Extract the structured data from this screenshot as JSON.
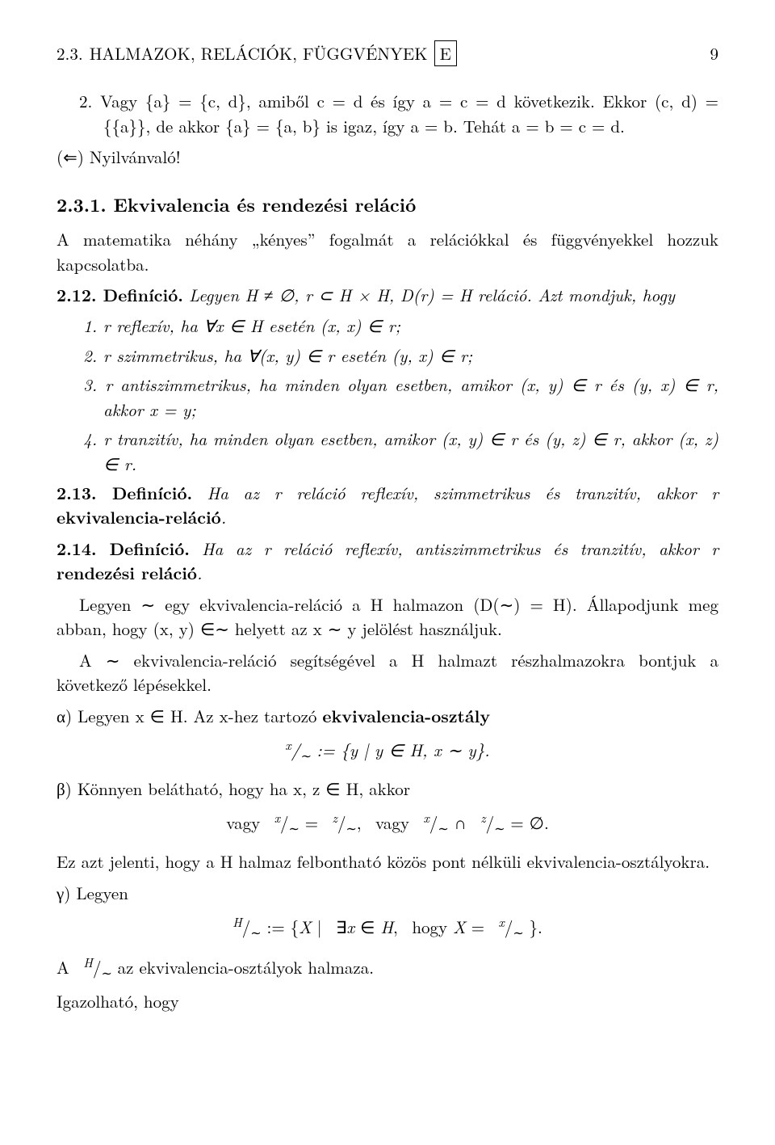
{
  "header": {
    "section_num": "2.3.",
    "section_title": "HALMAZOK, RELÁCIÓK, FÜGGVÉNYEK",
    "boxed_letter": "E",
    "page_number": "9"
  },
  "case2": {
    "num": "2.",
    "text": "Vagy {a} = {c, d}, amiből c = d és így a = c = d következik. Ekkor (c, d) = {{a}}, de akkor {a} = {a, b} is igaz, így a = b. Tehát a = b = c = d."
  },
  "nyilv": "(⇐) Nyilvánvaló!",
  "subsection": {
    "num": "2.3.1.",
    "title": "Ekvivalencia és rendezési reláció"
  },
  "intro": "A matematika néhány „kényes” fogalmát a relációkkal és függvényekkel hozzuk kapcsolatba.",
  "def212": {
    "label": "2.12. Definíció.",
    "body": "Legyen H ≠ ∅, r ⊂ H × H, D(r) = H reláció. Azt mondjuk, hogy"
  },
  "items": [
    {
      "num": "1.",
      "text": "r reflexív, ha ∀x ∈ H esetén (x, x) ∈ r;"
    },
    {
      "num": "2.",
      "text": "r szimmetrikus, ha ∀(x, y) ∈ r esetén (y, x) ∈ r;"
    },
    {
      "num": "3.",
      "text": "r antiszimmetrikus, ha minden olyan esetben, amikor (x, y) ∈ r és (y, x) ∈ r, akkor x = y;"
    },
    {
      "num": "4.",
      "text": "r tranzitív, ha minden olyan esetben, amikor (x, y) ∈ r és (y, z) ∈ r, akkor (x, z) ∈ r."
    }
  ],
  "def213": {
    "label": "2.13. Definíció.",
    "body_pre": "Ha az r reláció reflexív, szimmetrikus és tranzitív, akkor r ",
    "bold": "ekvivalencia-reláció",
    "body_post": "."
  },
  "def214": {
    "label": "2.14. Definíció.",
    "body_pre": "Ha az r reláció reflexív, antiszimmetrikus és tranzitív, akkor r ",
    "bold": "rendezési reláció",
    "body_post": "."
  },
  "p_legyen": "Legyen ∼ egy ekvivalencia-reláció a H halmazon (D(∼) = H). Állapodjunk meg abban, hogy (x, y) ∈∼ helyett az x ∼ y jelölést használjuk.",
  "p_resz": "A ∼ ekvivalencia-reláció segítségével a H halmazt részhalmazokra bontjuk a következő lépésekkel.",
  "alpha": {
    "pre": "α) Legyen x ∈ H. Az x-hez tartozó ",
    "bold": "ekvivalencia-osztály",
    "math": "ˣ/∼ := {y | y ∈ H, x ∼ y}."
  },
  "beta": {
    "line": "β) Könnyen belátható, hogy ha x, z ∈ H, akkor",
    "math": "vagy  ˣ/∼ =  ᶻ/∼,  vagy  ˣ/∼ ∩  ᶻ/∼ = ∅."
  },
  "p_ez": "Ez azt jelenti, hogy a H halmaz felbontható közös pont nélküli ekvivalencia-osztályokra.",
  "gamma": {
    "line": "γ) Legyen",
    "math": "ᴴ/∼ := {X |  ∃x ∈ H,  hogy X =  ˣ/∼ }."
  },
  "p_a": "A  ᴴ/∼ az ekvivalencia-osztályok halmaza.",
  "p_ig": "Igazolható, hogy"
}
